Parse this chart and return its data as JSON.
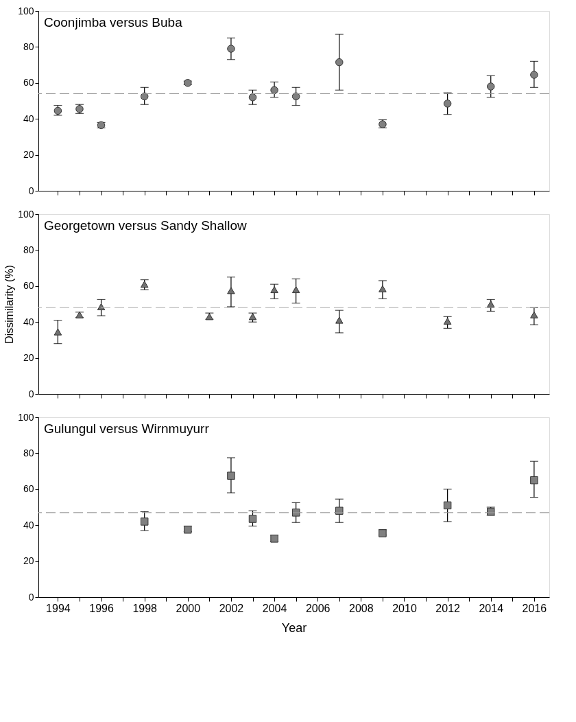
{
  "chart_data": [
    {
      "type": "scatter",
      "title": "Coonjimba  versus Buba",
      "marker": "circle",
      "grid": false,
      "tick_labels": "y",
      "xlim": [
        1993.1,
        2016.7
      ],
      "ylim": [
        0,
        100
      ],
      "yticks": [
        0,
        20,
        40,
        60,
        80,
        100
      ],
      "xticks": [
        1994,
        {
          "value": 1995,
          "label": null
        },
        1996,
        {
          "value": 1997,
          "label": null
        },
        1998,
        {
          "value": 1999,
          "label": null
        },
        2000,
        {
          "value": 2001,
          "label": null
        },
        2002,
        {
          "value": 2003,
          "label": null
        },
        2004,
        {
          "value": 2005,
          "label": null
        },
        2006,
        {
          "value": 2007,
          "label": null
        },
        2008,
        {
          "value": 2009,
          "label": null
        },
        2010,
        {
          "value": 2011,
          "label": null
        },
        2012,
        {
          "value": 2013,
          "label": null
        },
        2014,
        {
          "value": 2015,
          "label": null
        },
        2016
      ],
      "x": [
        1994,
        1995,
        1996,
        1998,
        2000,
        2002,
        2003,
        2004,
        2005,
        2007,
        2009,
        2012,
        2014,
        2016
      ],
      "series": [
        {
          "color": "#808080",
          "values": [
            44.5,
            45.5,
            36.5,
            52.5,
            60,
            79,
            52,
            56,
            52.5,
            71.5,
            37,
            48.5,
            58,
            64.5
          ],
          "errors": [
            [
              42,
              47.5
            ],
            [
              43,
              48
            ],
            [
              35,
              38
            ],
            [
              48,
              57.5
            ],
            [
              59,
              61
            ],
            [
              73,
              85
            ],
            [
              48,
              56
            ],
            [
              52,
              60.5
            ],
            [
              47.5,
              57.5
            ],
            [
              56,
              87
            ],
            [
              35,
              39.5
            ],
            [
              42.5,
              54.5
            ],
            [
              52,
              64
            ],
            [
              57.5,
              72
            ]
          ]
        }
      ],
      "ref_lines": [
        {
          "axis": "y",
          "value": 54,
          "color": "#999999",
          "line_style": "dashed"
        }
      ]
    },
    {
      "type": "scatter",
      "title": "Georgetown versus Sandy Shallow",
      "ylabel": "Dissimilarity (%)",
      "marker": "triangle",
      "grid": false,
      "tick_labels": "y",
      "xlim": [
        1993.1,
        2016.7
      ],
      "ylim": [
        0,
        100
      ],
      "yticks": [
        0,
        20,
        40,
        60,
        80,
        100
      ],
      "xticks": [
        1994,
        {
          "value": 1995,
          "label": null
        },
        1996,
        {
          "value": 1997,
          "label": null
        },
        1998,
        {
          "value": 1999,
          "label": null
        },
        2000,
        {
          "value": 2001,
          "label": null
        },
        2002,
        {
          "value": 2003,
          "label": null
        },
        2004,
        {
          "value": 2005,
          "label": null
        },
        2006,
        {
          "value": 2007,
          "label": null
        },
        2008,
        {
          "value": 2009,
          "label": null
        },
        2010,
        {
          "value": 2011,
          "label": null
        },
        2012,
        {
          "value": 2013,
          "label": null
        },
        2014,
        {
          "value": 2015,
          "label": null
        },
        2016
      ],
      "x": [
        1994,
        1995,
        1996,
        1998,
        2001,
        2002,
        2003,
        2004,
        2005,
        2007,
        2009,
        2012,
        2014,
        2016
      ],
      "series": [
        {
          "color": "#707070",
          "values": [
            34.5,
            44,
            48.5,
            61,
            43,
            57.5,
            43,
            58,
            58,
            41,
            58.5,
            40.5,
            50,
            44
          ],
          "errors": [
            [
              28,
              41
            ],
            [
              42.5,
              45.5
            ],
            [
              43.5,
              52.5
            ],
            [
              58,
              63.5
            ],
            [
              41.5,
              45
            ],
            [
              48.5,
              65
            ],
            [
              40,
              45
            ],
            [
              53,
              61
            ],
            [
              50.5,
              64
            ],
            [
              34,
              46.5
            ],
            [
              53,
              63
            ],
            [
              36.5,
              43
            ],
            [
              46,
              52.5
            ],
            [
              38.5,
              48
            ]
          ]
        }
      ],
      "ref_lines": [
        {
          "axis": "y",
          "value": 48,
          "color": "#aaaaaa",
          "line_style": "dashed"
        }
      ]
    },
    {
      "type": "scatter",
      "title": "Gulungul  versus Wirnmuyurr",
      "xlabel": "Year",
      "marker": "square",
      "grid": false,
      "xlim": [
        1993.1,
        2016.7
      ],
      "ylim": [
        0,
        100
      ],
      "yticks": [
        0,
        20,
        40,
        60,
        80,
        100
      ],
      "xticks": [
        1994,
        {
          "value": 1995,
          "label": null
        },
        1996,
        {
          "value": 1997,
          "label": null
        },
        1998,
        {
          "value": 1999,
          "label": null
        },
        2000,
        {
          "value": 2001,
          "label": null
        },
        2002,
        {
          "value": 2003,
          "label": null
        },
        2004,
        {
          "value": 2005,
          "label": null
        },
        2006,
        {
          "value": 2007,
          "label": null
        },
        2008,
        {
          "value": 2009,
          "label": null
        },
        2010,
        {
          "value": 2011,
          "label": null
        },
        2012,
        {
          "value": 2013,
          "label": null
        },
        2014,
        {
          "value": 2015,
          "label": null
        },
        2016
      ],
      "x": [
        1998,
        2000,
        2002,
        2003,
        2004,
        2005,
        2007,
        2009,
        2012,
        2014,
        2016
      ],
      "series": [
        {
          "color": "#808080",
          "values": [
            42,
            37.5,
            67.5,
            43.5,
            32.5,
            47,
            48,
            35.5,
            51,
            47.5,
            65
          ],
          "errors": [
            [
              37,
              47.5
            ],
            [
              36.5,
              39.5
            ],
            [
              58,
              77.5
            ],
            [
              39.5,
              48
            ],
            [
              31,
              34.5
            ],
            [
              41.5,
              52.5
            ],
            [
              41.5,
              54.5
            ],
            [
              34.5,
              37.5
            ],
            [
              42,
              60
            ],
            [
              45.5,
              50
            ],
            [
              55.5,
              75.5
            ]
          ]
        }
      ],
      "ref_lines": [
        {
          "axis": "y",
          "value": 47,
          "color": "#999999",
          "line_style": "dashed"
        }
      ]
    }
  ]
}
